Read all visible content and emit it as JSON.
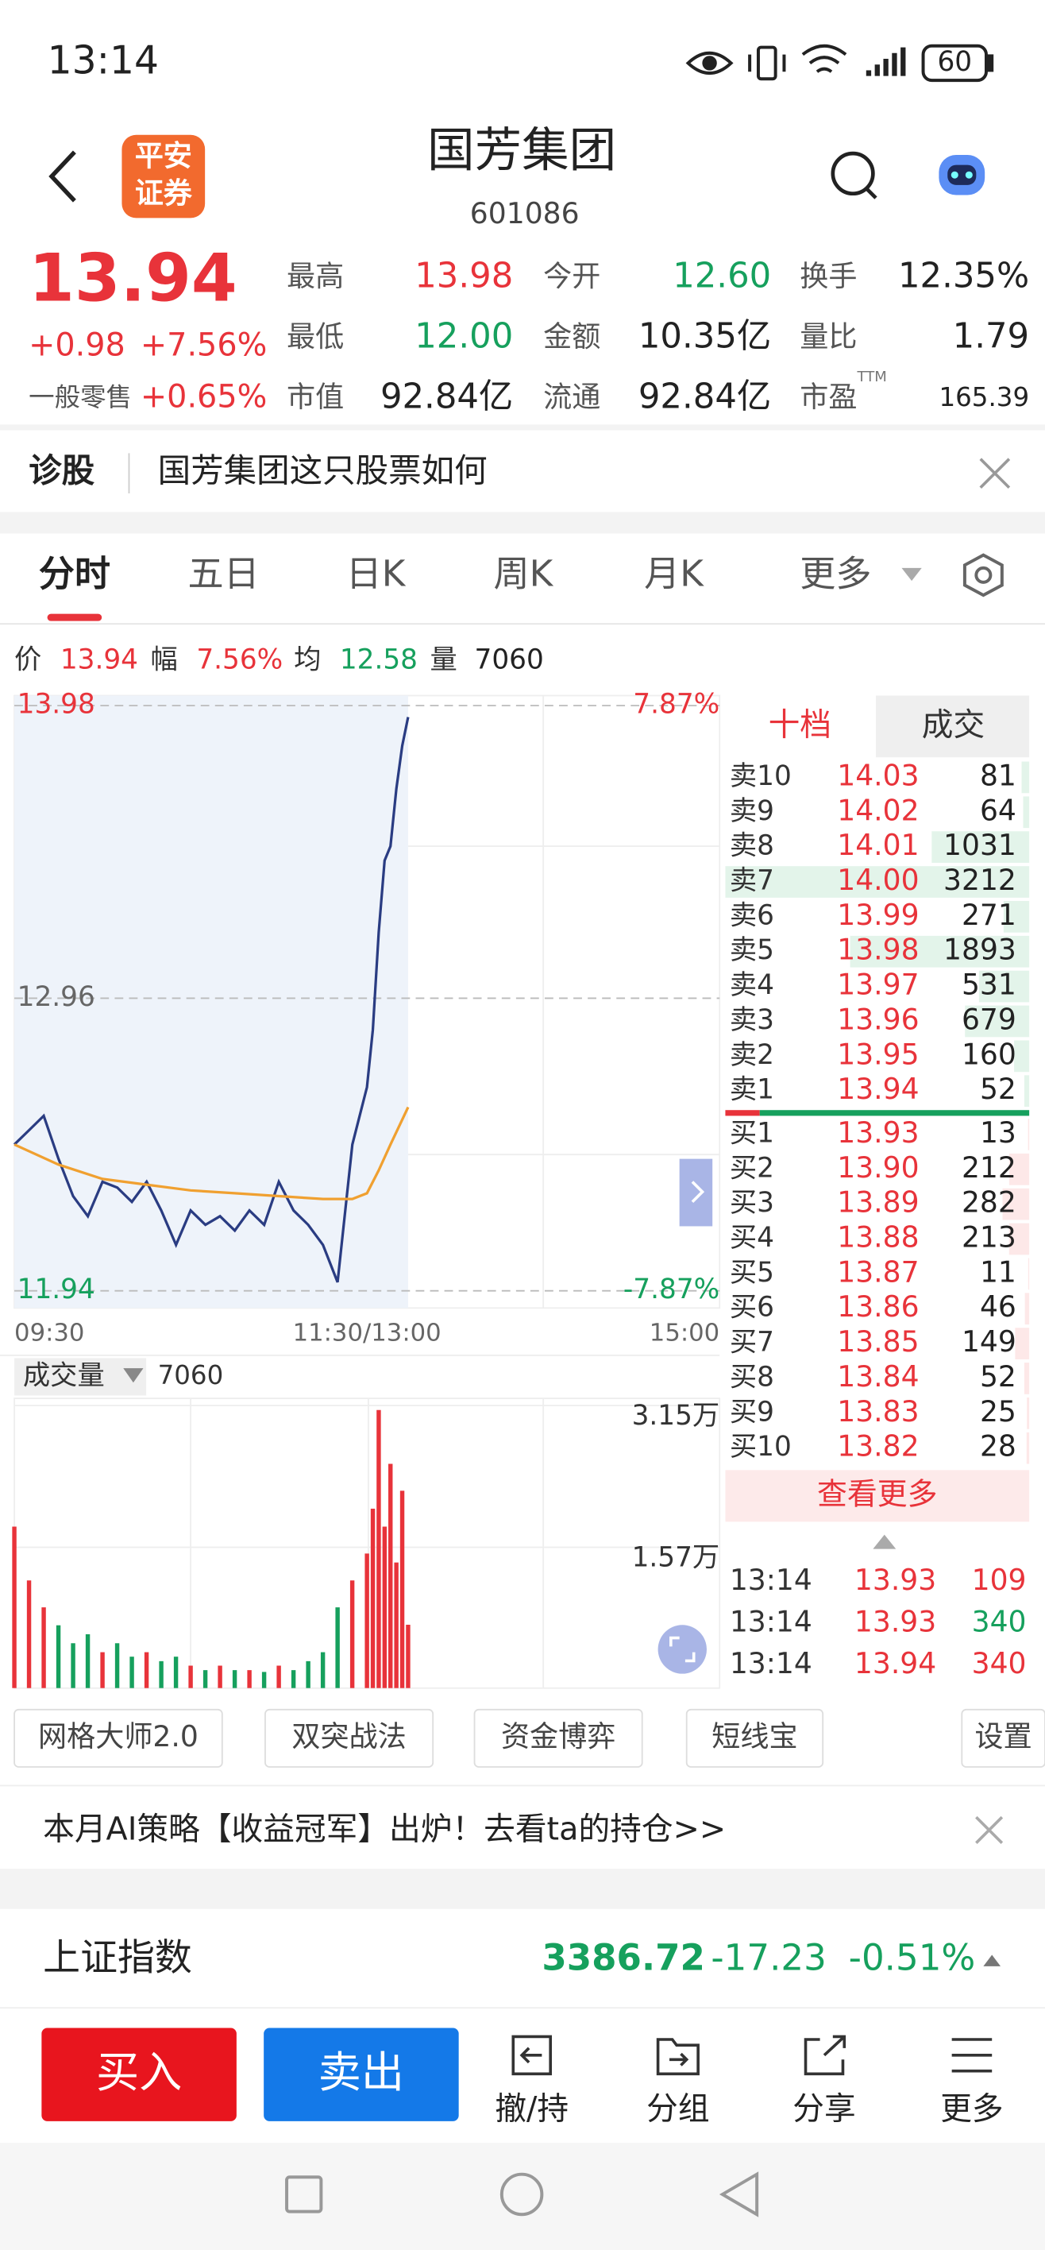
{
  "status_bar": {
    "time": "13:14",
    "battery": "60"
  },
  "header": {
    "logo": [
      "平安",
      "证券"
    ],
    "title": "国芳集团",
    "code": "601086"
  },
  "quote": {
    "price": "13.94",
    "change": "+0.98",
    "change_pct": "+7.56%",
    "sector": "一般零售",
    "sector_change": "+0.65%",
    "stats": [
      {
        "label": "最高",
        "value": "13.98",
        "color": "#e8333a"
      },
      {
        "label": "今开",
        "value": "12.60",
        "color": "#16a05d"
      },
      {
        "label": "换手",
        "value": "12.35%",
        "color": "#222222"
      },
      {
        "label": "最低",
        "value": "12.00",
        "color": "#16a05d"
      },
      {
        "label": "金额",
        "value": "10.35亿",
        "color": "#222222"
      },
      {
        "label": "量比",
        "value": "1.79",
        "color": "#222222"
      },
      {
        "label": "市值",
        "value": "92.84亿",
        "color": "#222222"
      },
      {
        "label": "流通",
        "value": "92.84亿",
        "color": "#222222"
      },
      {
        "label": "市盈",
        "value": "165.39",
        "color": "#222222"
      }
    ],
    "pe_tag": "TTM"
  },
  "diagnosis": {
    "label": "诊股",
    "text": "国芳集团这只股票如何"
  },
  "tabs": [
    "分时",
    "五日",
    "日K",
    "周K",
    "月K",
    "更多"
  ],
  "info_bar": [
    {
      "label": "价",
      "value": "13.94",
      "color": "#e8333a"
    },
    {
      "label": "幅",
      "value": "7.56%",
      "color": "#e8333a"
    },
    {
      "label": "均",
      "value": "12.58",
      "color": "#16a05d"
    },
    {
      "label": "量",
      "value": "7060",
      "color": "#222222"
    }
  ],
  "chart": {
    "type": "line",
    "ylim": [
      11.94,
      13.98
    ],
    "yticks": [
      11.94,
      12.96,
      13.98
    ],
    "y2lim": [
      -7.87,
      7.87
    ],
    "y2ticks": [
      {
        "value": -7.87,
        "label": "-7.87%"
      },
      {
        "value": 7.87,
        "label": "7.87%"
      }
    ],
    "xticks": [
      "09:30",
      "11:30/13:00",
      "15:00"
    ],
    "series": [
      {
        "color": "#2a3c82",
        "x": [
          "09:30",
          "09:35",
          "09:40",
          "09:45",
          "09:50",
          "09:55",
          "10:00",
          "10:05",
          "10:10",
          "10:15",
          "10:20",
          "10:25",
          "10:30",
          "10:35",
          "10:40",
          "10:45",
          "10:50",
          "10:55",
          "11:00",
          "11:05",
          "11:10",
          "11:15",
          "11:20",
          "11:25",
          "11:30",
          "13:02",
          "13:04",
          "13:06",
          "13:08",
          "13:10",
          "13:12",
          "13:14"
        ],
        "values": [
          12.45,
          12.5,
          12.55,
          12.4,
          12.27,
          12.2,
          12.32,
          12.3,
          12.25,
          12.32,
          12.22,
          12.1,
          12.22,
          12.17,
          12.2,
          12.15,
          12.22,
          12.17,
          12.32,
          12.22,
          12.17,
          12.1,
          11.97,
          12.45,
          12.65,
          12.85,
          13.19,
          13.44,
          13.49,
          13.69,
          13.84,
          13.94
        ]
      },
      {
        "color": "#f0a030",
        "x": [
          "09:30",
          "09:45",
          "10:00",
          "10:15",
          "10:30",
          "10:45",
          "11:00",
          "11:15",
          "11:25",
          "11:30",
          "13:04",
          "13:08",
          "13:14"
        ],
        "values": [
          12.45,
          12.38,
          12.33,
          12.31,
          12.29,
          12.28,
          12.27,
          12.26,
          12.26,
          12.28,
          12.36,
          12.45,
          12.58
        ]
      }
    ]
  },
  "volume": {
    "type": "bar",
    "label": "成交量",
    "current": "7060",
    "ylim": [
      0,
      31500
    ],
    "yticks": [
      {
        "value": 15700,
        "label": "1.57万"
      },
      {
        "value": 31500,
        "label": "3.15万"
      }
    ],
    "values": [
      18000,
      12000,
      9000,
      7000,
      5000,
      6000,
      4000,
      5000,
      3500,
      4000,
      3000,
      3500,
      2500,
      2000,
      2500,
      2000,
      2000,
      1800,
      2500,
      2000,
      3000,
      4000,
      9000,
      12000,
      15000,
      20000,
      31000,
      18000,
      25000,
      14000,
      22000,
      7060
    ]
  },
  "order_book": {
    "tabs": [
      "十档",
      "成交"
    ],
    "asks": [
      {
        "label": "卖10",
        "price": "14.03",
        "volume": 81
      },
      {
        "label": "卖9",
        "price": "14.02",
        "volume": 64
      },
      {
        "label": "卖8",
        "price": "14.01",
        "volume": 1031
      },
      {
        "label": "卖7",
        "price": "14.00",
        "volume": 3212
      },
      {
        "label": "卖6",
        "price": "13.99",
        "volume": 271
      },
      {
        "label": "卖5",
        "price": "13.98",
        "volume": 1893
      },
      {
        "label": "卖4",
        "price": "13.97",
        "volume": 531
      },
      {
        "label": "卖3",
        "price": "13.96",
        "volume": 679
      },
      {
        "label": "卖2",
        "price": "13.95",
        "volume": 160
      },
      {
        "label": "卖1",
        "price": "13.94",
        "volume": 52
      }
    ],
    "bids": [
      {
        "label": "买1",
        "price": "13.93",
        "volume": 13
      },
      {
        "label": "买2",
        "price": "13.90",
        "volume": 212
      },
      {
        "label": "买3",
        "price": "13.89",
        "volume": 282
      },
      {
        "label": "买4",
        "price": "13.88",
        "volume": 213
      },
      {
        "label": "买5",
        "price": "13.87",
        "volume": 11
      },
      {
        "label": "买6",
        "price": "13.86",
        "volume": 46
      },
      {
        "label": "买7",
        "price": "13.85",
        "volume": 149
      },
      {
        "label": "买8",
        "price": "13.84",
        "volume": 52
      },
      {
        "label": "买9",
        "price": "13.83",
        "volume": 25
      },
      {
        "label": "买10",
        "price": "13.82",
        "volume": 28
      }
    ],
    "more": "查看更多",
    "trades": [
      {
        "time": "13:14",
        "price": "13.93",
        "volume": 109,
        "color": "#e8333a"
      },
      {
        "time": "13:14",
        "price": "13.93",
        "volume": 340,
        "color": "#16a05d"
      },
      {
        "time": "13:14",
        "price": "13.94",
        "volume": 340,
        "color": "#e8333a"
      }
    ]
  },
  "tools": [
    "网格大师2.0",
    "双突战法",
    "资金博弈",
    "短线宝",
    "设置"
  ],
  "banner": "本月AI策略【收益冠军】出炉！去看ta的持仓>>",
  "index": {
    "name": "上证指数",
    "value": "3386.72",
    "change": "-17.23",
    "change_pct": "-0.51%"
  },
  "actions": {
    "buy": "买入",
    "sell": "卖出",
    "items": [
      "撤/持",
      "分组",
      "分享",
      "更多"
    ]
  }
}
